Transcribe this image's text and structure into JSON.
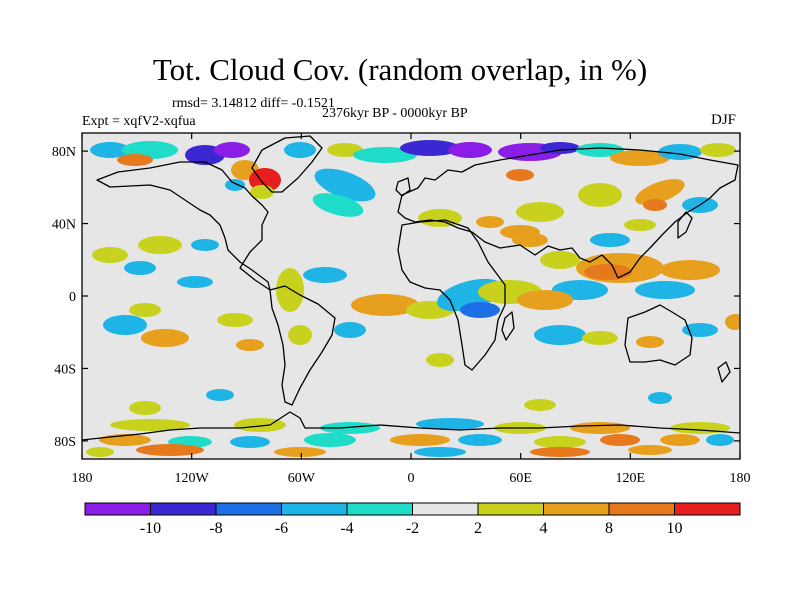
{
  "title": "Tot. Cloud Cov. (random overlap, in %)",
  "stats": "rmsd= 3.14812 diff= -0.1521",
  "period": "2376kyr BP - 0000kyr BP",
  "experiment": "Expt = xqfV2-xqfua",
  "season": "DJF",
  "x_ticks": [
    {
      "value": -180,
      "label": "180"
    },
    {
      "value": -120,
      "label": "120W"
    },
    {
      "value": -60,
      "label": "60W"
    },
    {
      "value": 0,
      "label": "0"
    },
    {
      "value": 60,
      "label": "60E"
    },
    {
      "value": 120,
      "label": "120E"
    },
    {
      "value": 180,
      "label": "180"
    }
  ],
  "y_ticks": [
    {
      "value": 80,
      "label": "80N"
    },
    {
      "value": 40,
      "label": "40N"
    },
    {
      "value": 0,
      "label": "0"
    },
    {
      "value": -40,
      "label": "40S"
    },
    {
      "value": -80,
      "label": "80S"
    }
  ],
  "colorbar": {
    "colors": [
      "#8a1ee6",
      "#3c28d2",
      "#1e6ee6",
      "#1eb4e6",
      "#1edcc8",
      "#e6e6e6",
      "#c8d21e",
      "#e6a01e",
      "#e6781e",
      "#e61e1e"
    ],
    "labels": [
      "-10",
      "-8",
      "-6",
      "-4",
      "-2",
      "2",
      "4",
      "8",
      "10"
    ]
  },
  "palette": {
    "neutral": "#e6e6e6",
    "coastline": "#000000"
  }
}
